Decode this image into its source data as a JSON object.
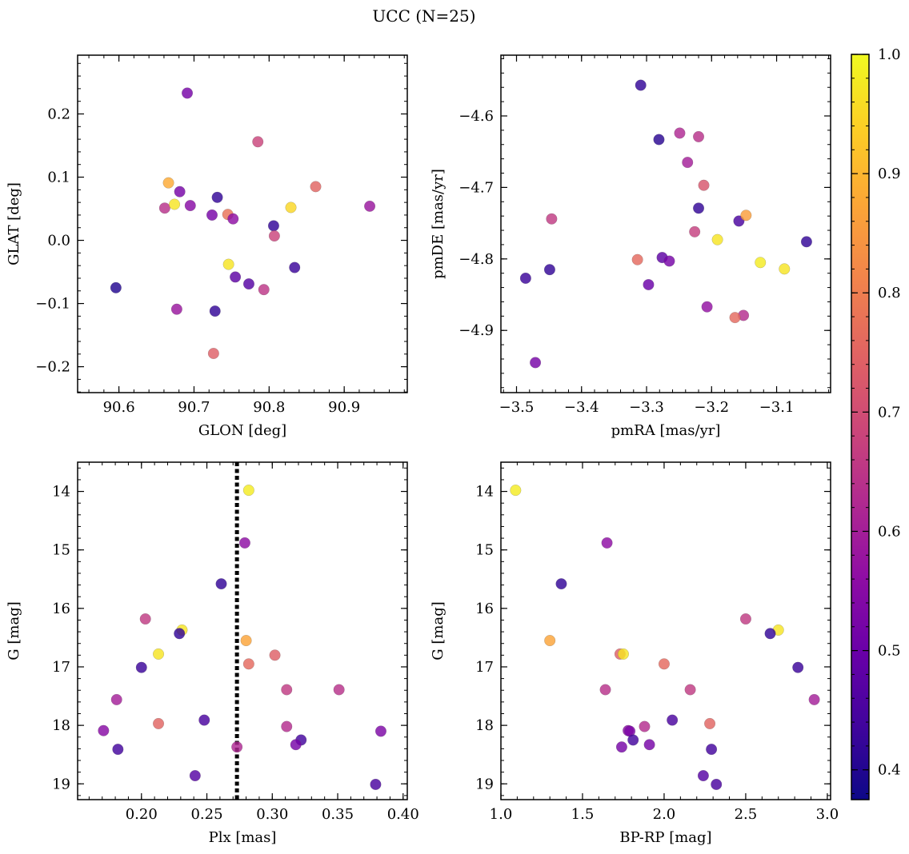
{
  "figure": {
    "title": "UCC (N=25)"
  },
  "colorbar": {
    "cmap": "plasma",
    "vmin": 0.375,
    "vmax": 1.0,
    "ticks": [
      "0.4",
      "0.5",
      "0.6",
      "0.7",
      "0.8",
      "0.9",
      "1.0"
    ],
    "tick_values": [
      0.4,
      0.5,
      0.6,
      0.7,
      0.8,
      0.9,
      1.0
    ]
  },
  "chart_data": [
    {
      "id": "glon-glat",
      "type": "scatter",
      "xlabel": "GLON [deg]",
      "ylabel": "GLAT [deg]",
      "xlim": [
        90.545,
        90.984
      ],
      "ylim": [
        -0.241,
        0.293
      ],
      "y_inverted": false,
      "xticks": [
        90.6,
        90.7,
        90.8,
        90.9
      ],
      "xtick_labels": [
        "90.6",
        "90.7",
        "90.8",
        "90.9"
      ],
      "yticks": [
        -0.2,
        -0.1,
        0.0,
        0.1,
        0.2
      ],
      "ytick_labels": [
        "−0.2",
        "−0.1",
        "0.0",
        "0.1",
        "0.2"
      ],
      "points": [
        {
          "x": 90.596,
          "y": -0.075,
          "c": 0.4
        },
        {
          "x": 90.691,
          "y": 0.233,
          "c": 0.52
        },
        {
          "x": 90.666,
          "y": 0.091,
          "c": 0.88
        },
        {
          "x": 90.661,
          "y": 0.051,
          "c": 0.64
        },
        {
          "x": 90.674,
          "y": 0.057,
          "c": 0.97
        },
        {
          "x": 90.681,
          "y": 0.077,
          "c": 0.52
        },
        {
          "x": 90.695,
          "y": 0.055,
          "c": 0.55
        },
        {
          "x": 90.724,
          "y": 0.04,
          "c": 0.52
        },
        {
          "x": 90.731,
          "y": 0.068,
          "c": 0.42
        },
        {
          "x": 90.745,
          "y": 0.041,
          "c": 0.78
        },
        {
          "x": 90.752,
          "y": 0.034,
          "c": 0.56
        },
        {
          "x": 90.785,
          "y": 0.156,
          "c": 0.68
        },
        {
          "x": 90.806,
          "y": 0.023,
          "c": 0.42
        },
        {
          "x": 90.807,
          "y": 0.007,
          "c": 0.68
        },
        {
          "x": 90.829,
          "y": 0.052,
          "c": 0.95
        },
        {
          "x": 90.862,
          "y": 0.085,
          "c": 0.75
        },
        {
          "x": 90.934,
          "y": 0.054,
          "c": 0.58
        },
        {
          "x": 90.746,
          "y": -0.038,
          "c": 0.97
        },
        {
          "x": 90.755,
          "y": -0.058,
          "c": 0.48
        },
        {
          "x": 90.773,
          "y": -0.069,
          "c": 0.47
        },
        {
          "x": 90.793,
          "y": -0.078,
          "c": 0.65
        },
        {
          "x": 90.834,
          "y": -0.043,
          "c": 0.43
        },
        {
          "x": 90.677,
          "y": -0.109,
          "c": 0.58
        },
        {
          "x": 90.728,
          "y": -0.112,
          "c": 0.42
        },
        {
          "x": 90.726,
          "y": -0.179,
          "c": 0.74
        }
      ]
    },
    {
      "id": "pmra-pmde",
      "type": "scatter",
      "xlabel": "pmRA [mas/yr]",
      "ylabel": "pmDE [mas/yr]",
      "xlim": [
        -3.524,
        -3.017
      ],
      "ylim": [
        -4.987,
        -4.515
      ],
      "y_inverted": false,
      "xticks": [
        -3.5,
        -3.4,
        -3.3,
        -3.2,
        -3.1
      ],
      "xtick_labels": [
        "−3.5",
        "−3.4",
        "−3.3",
        "−3.2",
        "−3.1"
      ],
      "yticks": [
        -4.9,
        -4.8,
        -4.7,
        -4.6
      ],
      "ytick_labels": [
        "−4.9",
        "−4.8",
        "−4.7",
        "−4.6"
      ],
      "points": [
        {
          "x": -3.309,
          "y": -4.557,
          "c": 0.42
        },
        {
          "x": -3.281,
          "y": -4.633,
          "c": 0.41
        },
        {
          "x": -3.249,
          "y": -4.624,
          "c": 0.62
        },
        {
          "x": -3.22,
          "y": -4.629,
          "c": 0.64
        },
        {
          "x": -3.237,
          "y": -4.665,
          "c": 0.6
        },
        {
          "x": -3.212,
          "y": -4.697,
          "c": 0.72
        },
        {
          "x": -3.22,
          "y": -4.729,
          "c": 0.42
        },
        {
          "x": -3.158,
          "y": -4.747,
          "c": 0.45
        },
        {
          "x": -3.147,
          "y": -4.739,
          "c": 0.86
        },
        {
          "x": -3.446,
          "y": -4.744,
          "c": 0.66
        },
        {
          "x": -3.226,
          "y": -4.762,
          "c": 0.67
        },
        {
          "x": -3.191,
          "y": -4.773,
          "c": 0.97
        },
        {
          "x": -3.054,
          "y": -4.776,
          "c": 0.42
        },
        {
          "x": -3.314,
          "y": -4.801,
          "c": 0.76
        },
        {
          "x": -3.276,
          "y": -4.798,
          "c": 0.48
        },
        {
          "x": -3.265,
          "y": -4.803,
          "c": 0.52
        },
        {
          "x": -3.125,
          "y": -4.805,
          "c": 0.98
        },
        {
          "x": -3.088,
          "y": -4.814,
          "c": 0.97
        },
        {
          "x": -3.449,
          "y": -4.815,
          "c": 0.42
        },
        {
          "x": -3.486,
          "y": -4.827,
          "c": 0.43
        },
        {
          "x": -3.297,
          "y": -4.836,
          "c": 0.5
        },
        {
          "x": -3.207,
          "y": -4.867,
          "c": 0.57
        },
        {
          "x": -3.151,
          "y": -4.879,
          "c": 0.63
        },
        {
          "x": -3.164,
          "y": -4.882,
          "c": 0.76
        },
        {
          "x": -3.471,
          "y": -4.945,
          "c": 0.52
        }
      ]
    },
    {
      "id": "plx-g",
      "type": "scatter",
      "xlabel": "Plx [mas]",
      "ylabel": "G [mag]",
      "xlim": [
        0.1512,
        0.4032
      ],
      "ylim": [
        13.5,
        19.27
      ],
      "y_inverted": true,
      "xticks": [
        0.2,
        0.25,
        0.3,
        0.35,
        0.4
      ],
      "xtick_labels": [
        "0.20",
        "0.25",
        "0.30",
        "0.35",
        "0.40"
      ],
      "yticks": [
        14,
        15,
        16,
        17,
        18,
        19
      ],
      "ytick_labels": [
        "14",
        "15",
        "16",
        "17",
        "18",
        "19"
      ],
      "vline": {
        "x": 0.273,
        "style": "dotted"
      },
      "points": [
        {
          "x": 0.282,
          "y": 13.98,
          "c": 0.98
        },
        {
          "x": 0.279,
          "y": 14.88,
          "c": 0.56
        },
        {
          "x": 0.261,
          "y": 15.58,
          "c": 0.42
        },
        {
          "x": 0.203,
          "y": 16.18,
          "c": 0.66
        },
        {
          "x": 0.231,
          "y": 16.37,
          "c": 0.97
        },
        {
          "x": 0.229,
          "y": 16.43,
          "c": 0.42
        },
        {
          "x": 0.28,
          "y": 16.55,
          "c": 0.87
        },
        {
          "x": 0.213,
          "y": 16.78,
          "c": 0.97
        },
        {
          "x": 0.302,
          "y": 16.8,
          "c": 0.74
        },
        {
          "x": 0.282,
          "y": 16.95,
          "c": 0.76
        },
        {
          "x": 0.2,
          "y": 17.01,
          "c": 0.43
        },
        {
          "x": 0.311,
          "y": 17.39,
          "c": 0.66
        },
        {
          "x": 0.351,
          "y": 17.39,
          "c": 0.64
        },
        {
          "x": 0.181,
          "y": 17.56,
          "c": 0.6
        },
        {
          "x": 0.248,
          "y": 17.91,
          "c": 0.45
        },
        {
          "x": 0.213,
          "y": 17.97,
          "c": 0.75
        },
        {
          "x": 0.311,
          "y": 18.02,
          "c": 0.63
        },
        {
          "x": 0.171,
          "y": 18.09,
          "c": 0.55
        },
        {
          "x": 0.383,
          "y": 18.1,
          "c": 0.53
        },
        {
          "x": 0.322,
          "y": 18.25,
          "c": 0.44
        },
        {
          "x": 0.318,
          "y": 18.33,
          "c": 0.52
        },
        {
          "x": 0.273,
          "y": 18.37,
          "c": 0.62
        },
        {
          "x": 0.182,
          "y": 18.41,
          "c": 0.44
        },
        {
          "x": 0.241,
          "y": 18.86,
          "c": 0.47
        },
        {
          "x": 0.379,
          "y": 19.01,
          "c": 0.45
        }
      ]
    },
    {
      "id": "bprp-g",
      "type": "scatter",
      "xlabel": "BP-RP [mag]",
      "ylabel": "G [mag]",
      "xlim": [
        1.0,
        3.02
      ],
      "ylim": [
        13.5,
        19.27
      ],
      "y_inverted": true,
      "xticks": [
        1.0,
        1.5,
        2.0,
        2.5,
        3.0
      ],
      "xtick_labels": [
        "1.0",
        "1.5",
        "2.0",
        "2.5",
        "3.0"
      ],
      "yticks": [
        14,
        15,
        16,
        17,
        18,
        19
      ],
      "ytick_labels": [
        "14",
        "15",
        "16",
        "17",
        "18",
        "19"
      ],
      "points": [
        {
          "x": 1.09,
          "y": 13.98,
          "c": 0.98
        },
        {
          "x": 1.65,
          "y": 14.88,
          "c": 0.56
        },
        {
          "x": 1.37,
          "y": 15.58,
          "c": 0.42
        },
        {
          "x": 2.5,
          "y": 16.18,
          "c": 0.66
        },
        {
          "x": 2.7,
          "y": 16.37,
          "c": 0.97
        },
        {
          "x": 2.65,
          "y": 16.43,
          "c": 0.42
        },
        {
          "x": 1.3,
          "y": 16.55,
          "c": 0.87
        },
        {
          "x": 1.73,
          "y": 16.78,
          "c": 0.74
        },
        {
          "x": 1.75,
          "y": 16.78,
          "c": 0.97
        },
        {
          "x": 2.0,
          "y": 16.95,
          "c": 0.76
        },
        {
          "x": 2.82,
          "y": 17.01,
          "c": 0.43
        },
        {
          "x": 1.64,
          "y": 17.39,
          "c": 0.64
        },
        {
          "x": 2.16,
          "y": 17.39,
          "c": 0.66
        },
        {
          "x": 2.92,
          "y": 17.56,
          "c": 0.6
        },
        {
          "x": 2.05,
          "y": 17.91,
          "c": 0.45
        },
        {
          "x": 2.28,
          "y": 17.97,
          "c": 0.75
        },
        {
          "x": 1.88,
          "y": 18.02,
          "c": 0.63
        },
        {
          "x": 1.78,
          "y": 18.09,
          "c": 0.55
        },
        {
          "x": 1.79,
          "y": 18.1,
          "c": 0.53
        },
        {
          "x": 1.81,
          "y": 18.25,
          "c": 0.44
        },
        {
          "x": 1.91,
          "y": 18.33,
          "c": 0.52
        },
        {
          "x": 1.74,
          "y": 18.37,
          "c": 0.52
        },
        {
          "x": 2.29,
          "y": 18.41,
          "c": 0.44
        },
        {
          "x": 2.24,
          "y": 18.86,
          "c": 0.47
        },
        {
          "x": 2.32,
          "y": 19.01,
          "c": 0.45
        }
      ]
    }
  ]
}
